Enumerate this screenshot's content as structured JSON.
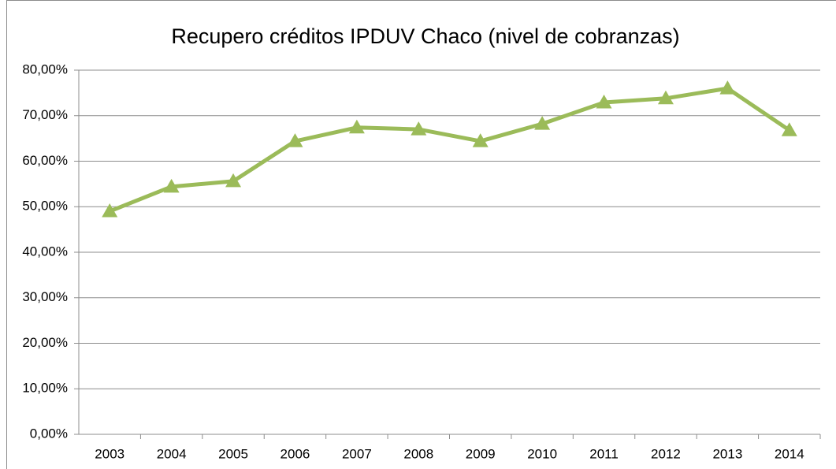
{
  "chart_data": {
    "type": "line",
    "title": "Recupero créditos IPDUV Chaco (nivel de cobranzas)",
    "categories": [
      "2003",
      "2004",
      "2005",
      "2006",
      "2007",
      "2008",
      "2009",
      "2010",
      "2011",
      "2012",
      "2013",
      "2014"
    ],
    "values": [
      49.0,
      54.4,
      55.6,
      64.4,
      67.4,
      67.0,
      64.4,
      68.2,
      72.9,
      73.8,
      76.0,
      66.8
    ],
    "color": "#9bbb59",
    "ylim": [
      0,
      80
    ],
    "yticks": [
      {
        "value": 0,
        "label": "0,00%"
      },
      {
        "value": 10,
        "label": "10,00%"
      },
      {
        "value": 20,
        "label": "20,00%"
      },
      {
        "value": 30,
        "label": "30,00%"
      },
      {
        "value": 40,
        "label": "40,00%"
      },
      {
        "value": 50,
        "label": "50,00%"
      },
      {
        "value": 60,
        "label": "60,00%"
      },
      {
        "value": 70,
        "label": "70,00%"
      },
      {
        "value": 80,
        "label": "80,00%"
      }
    ],
    "grid": true
  }
}
